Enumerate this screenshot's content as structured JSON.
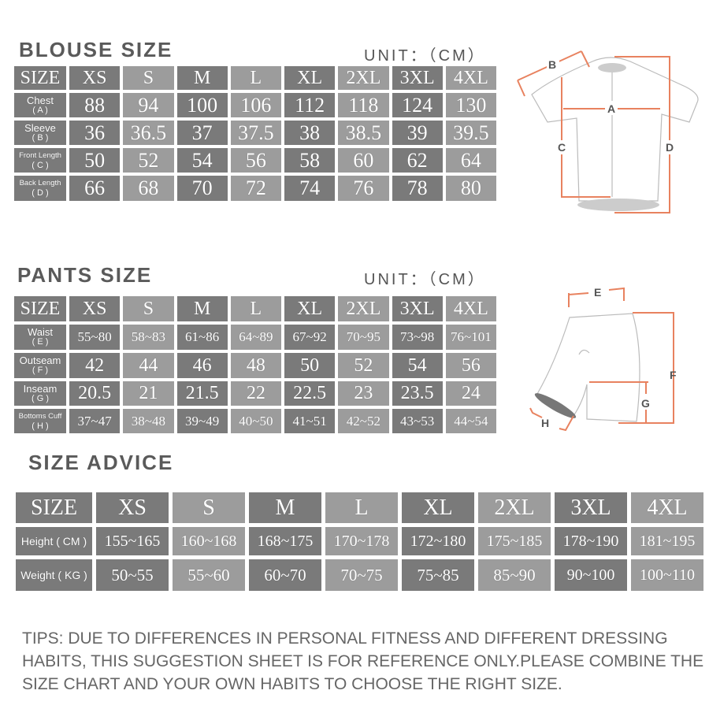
{
  "blouse": {
    "title": "BLOUSE SIZE",
    "unit": "UNIT：（CM）",
    "header": [
      "SIZE",
      "XS",
      "S",
      "M",
      "L",
      "XL",
      "2XL",
      "3XL",
      "4XL"
    ],
    "rows": [
      {
        "label": "Chest",
        "code": "( A )",
        "values": [
          "88",
          "94",
          "100",
          "106",
          "112",
          "118",
          "124",
          "130"
        ]
      },
      {
        "label": "Sleeve",
        "code": "( B )",
        "values": [
          "36",
          "36.5",
          "37",
          "37.5",
          "38",
          "38.5",
          "39",
          "39.5"
        ]
      },
      {
        "label": "Front Length",
        "code": "( C )",
        "values": [
          "50",
          "52",
          "54",
          "56",
          "58",
          "60",
          "62",
          "64"
        ]
      },
      {
        "label": "Back Length",
        "code": "( D )",
        "values": [
          "66",
          "68",
          "70",
          "72",
          "74",
          "76",
          "78",
          "80"
        ]
      }
    ],
    "diagram_labels": [
      "A",
      "B",
      "C",
      "D"
    ]
  },
  "pants": {
    "title": "PANTS SIZE",
    "unit": "UNIT：（CM）",
    "header": [
      "SIZE",
      "XS",
      "S",
      "M",
      "L",
      "XL",
      "2XL",
      "3XL",
      "4XL"
    ],
    "rows": [
      {
        "label": "Waist",
        "code": "( E )",
        "values": [
          "55~80",
          "58~83",
          "61~86",
          "64~89",
          "67~92",
          "70~95",
          "73~98",
          "76~101"
        ]
      },
      {
        "label": "Outseam",
        "code": "( F )",
        "values": [
          "42",
          "44",
          "46",
          "48",
          "50",
          "52",
          "54",
          "56"
        ]
      },
      {
        "label": "Inseam",
        "code": "( G )",
        "values": [
          "20.5",
          "21",
          "21.5",
          "22",
          "22.5",
          "23",
          "23.5",
          "24"
        ]
      },
      {
        "label": "Bottoms Cuff",
        "code": "( H )",
        "values": [
          "37~47",
          "38~48",
          "39~49",
          "40~50",
          "41~51",
          "42~52",
          "43~53",
          "44~54"
        ]
      }
    ],
    "diagram_labels": [
      "E",
      "F",
      "G",
      "H"
    ]
  },
  "advice": {
    "title": "SIZE ADVICE",
    "header": [
      "SIZE",
      "XS",
      "S",
      "M",
      "L",
      "XL",
      "2XL",
      "3XL",
      "4XL"
    ],
    "rows": [
      {
        "label": "Height ( CM )",
        "values": [
          "155~165",
          "160~168",
          "168~175",
          "170~178",
          "172~180",
          "175~185",
          "178~190",
          "181~195"
        ]
      },
      {
        "label": "Weight ( KG )",
        "values": [
          "50~55",
          "55~60",
          "60~70",
          "70~75",
          "75~85",
          "85~90",
          "90~100",
          "100~110"
        ]
      }
    ]
  },
  "tips": "TIPS: DUE TO DIFFERENCES IN PERSONAL FITNESS AND DIFFERENT DRESSING HABITS, THIS SUGGESTION SHEET IS FOR REFERENCE ONLY.PLEASE COMBINE THE SIZE CHART AND YOUR OWN HABITS TO CHOOSE THE RIGHT SIZE.",
  "colors": {
    "dark_cell": "#7a7a7a",
    "light_cell": "#9c9c9c",
    "measure_line": "#e8825f",
    "title": "#5a5a5a"
  }
}
